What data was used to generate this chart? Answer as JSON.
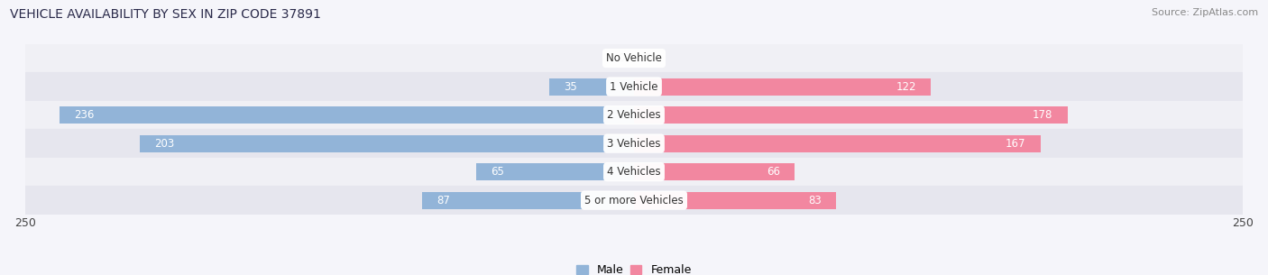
{
  "title": "VEHICLE AVAILABILITY BY SEX IN ZIP CODE 37891",
  "source": "Source: ZipAtlas.com",
  "categories": [
    "No Vehicle",
    "1 Vehicle",
    "2 Vehicles",
    "3 Vehicles",
    "4 Vehicles",
    "5 or more Vehicles"
  ],
  "male_values": [
    0,
    35,
    236,
    203,
    65,
    87
  ],
  "female_values": [
    0,
    122,
    178,
    167,
    66,
    83
  ],
  "male_color": "#92b4d8",
  "female_color": "#f287a0",
  "row_bg_color_light": "#f0f0f5",
  "row_bg_color_dark": "#e6e6ee",
  "label_color_inside": "#ffffff",
  "label_color_outside": "#555555",
  "axis_max": 250,
  "bar_height": 0.6,
  "figsize": [
    14.06,
    3.05
  ],
  "dpi": 100,
  "bg_color": "#f5f5fa"
}
